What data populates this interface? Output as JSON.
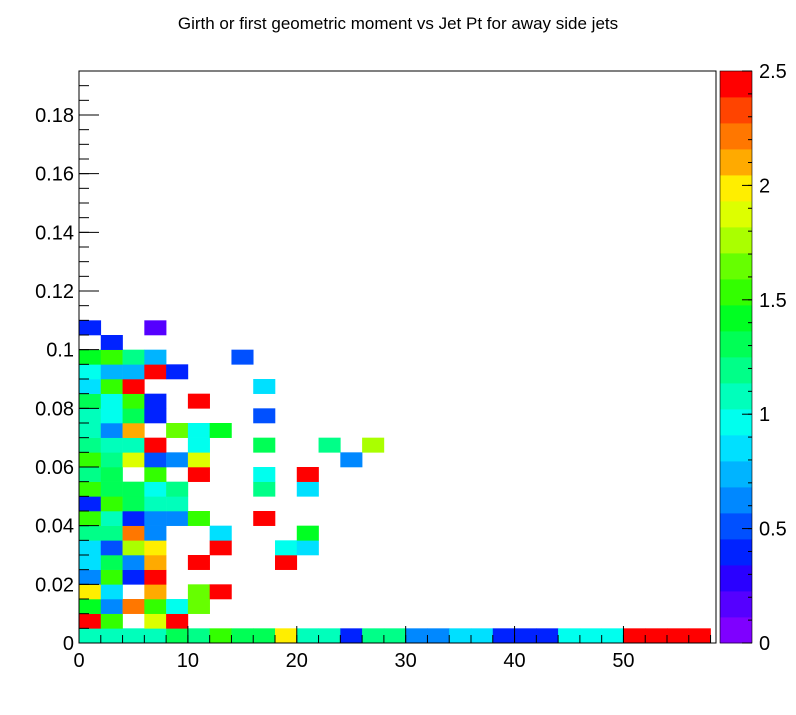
{
  "chart_data": {
    "type": "heatmap",
    "title": "Girth or first geometric moment vs Jet Pt for away side jets",
    "xlabel": "",
    "ylabel": "",
    "xlim": [
      0,
      58.5
    ],
    "ylim": [
      0,
      0.195
    ],
    "x_bin_width": 2,
    "y_bin_width": 0.005,
    "x_ticks": [
      "0",
      "10",
      "20",
      "30",
      "40",
      "50"
    ],
    "x_tick_values": [
      0,
      10,
      20,
      30,
      40,
      50
    ],
    "y_ticks": [
      "0",
      "0.02",
      "0.04",
      "0.06",
      "0.08",
      "0.1",
      "0.12",
      "0.14",
      "0.16",
      "0.18"
    ],
    "y_tick_values": [
      0,
      0.02,
      0.04,
      0.06,
      0.08,
      0.1,
      0.12,
      0.14,
      0.16,
      0.18
    ],
    "colorbar": {
      "min": 0,
      "max": 2.5,
      "levels": 20,
      "ticks": [
        "0",
        "0.5",
        "1",
        "1.5",
        "2",
        "2.5"
      ],
      "tick_values": [
        0,
        0.5,
        1,
        1.5,
        2,
        2.5
      ],
      "colors": [
        "#7f00ff",
        "#5500ff",
        "#2a00ff",
        "#0022ff",
        "#0050ff",
        "#0088ff",
        "#00b4ff",
        "#00e0ff",
        "#00ffee",
        "#00ffbb",
        "#00ff88",
        "#00ff55",
        "#00ff22",
        "#33ff00",
        "#66ff00",
        "#aaff00",
        "#ddff00",
        "#ffee00",
        "#ffaa00",
        "#ff7700",
        "#ff4400",
        "#ff0000"
      ]
    },
    "cells": [
      {
        "x": 0,
        "y": 0,
        "v": 1.05
      },
      {
        "x": 2,
        "y": 0,
        "v": 1.05
      },
      {
        "x": 4,
        "y": 0,
        "v": 1.05
      },
      {
        "x": 6,
        "y": 0,
        "v": 1.05
      },
      {
        "x": 8,
        "y": 0,
        "v": 1.3
      },
      {
        "x": 10,
        "y": 0,
        "v": 1.15
      },
      {
        "x": 12,
        "y": 0,
        "v": 1.55
      },
      {
        "x": 14,
        "y": 0,
        "v": 1.35
      },
      {
        "x": 16,
        "y": 0,
        "v": 1.35
      },
      {
        "x": 18,
        "y": 0,
        "v": 2.05
      },
      {
        "x": 20,
        "y": 0,
        "v": 1.05
      },
      {
        "x": 22,
        "y": 0,
        "v": 1.05
      },
      {
        "x": 24,
        "y": 0,
        "v": 0.3
      },
      {
        "x": 26,
        "y": 0,
        "v": 1.15
      },
      {
        "x": 28,
        "y": 0,
        "v": 1.15
      },
      {
        "x": 30,
        "y": 0,
        "v": 0.55
      },
      {
        "x": 32,
        "y": 0,
        "v": 0.55
      },
      {
        "x": 34,
        "y": 0,
        "v": 0.85
      },
      {
        "x": 36,
        "y": 0,
        "v": 0.85
      },
      {
        "x": 38,
        "y": 0,
        "v": 0.4
      },
      {
        "x": 40,
        "y": 0,
        "v": 0.4
      },
      {
        "x": 42,
        "y": 0,
        "v": 0.4
      },
      {
        "x": 44,
        "y": 0,
        "v": 1.0
      },
      {
        "x": 46,
        "y": 0,
        "v": 1.0
      },
      {
        "x": 48,
        "y": 0,
        "v": 1.0
      },
      {
        "x": 50,
        "y": 0,
        "v": 2.5
      },
      {
        "x": 52,
        "y": 0,
        "v": 2.5
      },
      {
        "x": 54,
        "y": 0,
        "v": 2.5
      },
      {
        "x": 56,
        "y": 0,
        "v": 2.5
      },
      {
        "x": 0,
        "y": 0.005,
        "v": 2.5
      },
      {
        "x": 2,
        "y": 0.005,
        "v": 1.55
      },
      {
        "x": 6,
        "y": 0.005,
        "v": 1.85
      },
      {
        "x": 8,
        "y": 0.005,
        "v": 2.5
      },
      {
        "x": 0,
        "y": 0.01,
        "v": 1.4
      },
      {
        "x": 2,
        "y": 0.01,
        "v": 0.6
      },
      {
        "x": 4,
        "y": 0.01,
        "v": 2.3
      },
      {
        "x": 6,
        "y": 0.01,
        "v": 1.55
      },
      {
        "x": 8,
        "y": 0.01,
        "v": 1.0
      },
      {
        "x": 10,
        "y": 0.01,
        "v": 1.65
      },
      {
        "x": 0,
        "y": 0.015,
        "v": 2.05
      },
      {
        "x": 2,
        "y": 0.015,
        "v": 0.85
      },
      {
        "x": 6,
        "y": 0.015,
        "v": 2.2
      },
      {
        "x": 10,
        "y": 0.015,
        "v": 1.65
      },
      {
        "x": 12,
        "y": 0.015,
        "v": 2.5
      },
      {
        "x": 0,
        "y": 0.02,
        "v": 0.55
      },
      {
        "x": 2,
        "y": 0.02,
        "v": 1.6
      },
      {
        "x": 4,
        "y": 0.02,
        "v": 0.4
      },
      {
        "x": 6,
        "y": 0.02,
        "v": 2.5
      },
      {
        "x": 0,
        "y": 0.025,
        "v": 0.8
      },
      {
        "x": 2,
        "y": 0.025,
        "v": 1.35
      },
      {
        "x": 4,
        "y": 0.025,
        "v": 0.6
      },
      {
        "x": 6,
        "y": 0.025,
        "v": 2.2
      },
      {
        "x": 10,
        "y": 0.025,
        "v": 2.5
      },
      {
        "x": 18,
        "y": 0.025,
        "v": 2.5
      },
      {
        "x": 0,
        "y": 0.03,
        "v": 0.85
      },
      {
        "x": 2,
        "y": 0.03,
        "v": 0.45
      },
      {
        "x": 4,
        "y": 0.03,
        "v": 1.75
      },
      {
        "x": 6,
        "y": 0.03,
        "v": 2.05
      },
      {
        "x": 12,
        "y": 0.03,
        "v": 2.5
      },
      {
        "x": 18,
        "y": 0.03,
        "v": 1.0
      },
      {
        "x": 20,
        "y": 0.03,
        "v": 0.85
      },
      {
        "x": 0,
        "y": 0.035,
        "v": 1.15
      },
      {
        "x": 2,
        "y": 0.035,
        "v": 1.15
      },
      {
        "x": 4,
        "y": 0.035,
        "v": 2.3
      },
      {
        "x": 6,
        "y": 0.035,
        "v": 0.6
      },
      {
        "x": 12,
        "y": 0.035,
        "v": 0.85
      },
      {
        "x": 20,
        "y": 0.035,
        "v": 1.4
      },
      {
        "x": 0,
        "y": 0.04,
        "v": 1.6
      },
      {
        "x": 2,
        "y": 0.04,
        "v": 1.1
      },
      {
        "x": 4,
        "y": 0.04,
        "v": 0.35
      },
      {
        "x": 6,
        "y": 0.04,
        "v": 0.55
      },
      {
        "x": 8,
        "y": 0.04,
        "v": 0.55
      },
      {
        "x": 10,
        "y": 0.04,
        "v": 1.6
      },
      {
        "x": 16,
        "y": 0.04,
        "v": 2.5
      },
      {
        "x": 0,
        "y": 0.045,
        "v": 0.4
      },
      {
        "x": 2,
        "y": 0.045,
        "v": 1.55
      },
      {
        "x": 4,
        "y": 0.045,
        "v": 1.35
      },
      {
        "x": 6,
        "y": 0.045,
        "v": 1.05
      },
      {
        "x": 8,
        "y": 0.045,
        "v": 1.05
      },
      {
        "x": 0,
        "y": 0.05,
        "v": 1.6
      },
      {
        "x": 2,
        "y": 0.05,
        "v": 1.25
      },
      {
        "x": 4,
        "y": 0.05,
        "v": 1.25
      },
      {
        "x": 6,
        "y": 0.05,
        "v": 0.9
      },
      {
        "x": 8,
        "y": 0.05,
        "v": 1.2
      },
      {
        "x": 16,
        "y": 0.05,
        "v": 1.15
      },
      {
        "x": 20,
        "y": 0.05,
        "v": 0.85
      },
      {
        "x": 0,
        "y": 0.055,
        "v": 1.15
      },
      {
        "x": 2,
        "y": 0.055,
        "v": 1.3
      },
      {
        "x": 6,
        "y": 0.055,
        "v": 1.55
      },
      {
        "x": 10,
        "y": 0.055,
        "v": 2.5
      },
      {
        "x": 16,
        "y": 0.055,
        "v": 0.95
      },
      {
        "x": 20,
        "y": 0.055,
        "v": 2.5
      },
      {
        "x": 0,
        "y": 0.06,
        "v": 1.5
      },
      {
        "x": 2,
        "y": 0.06,
        "v": 1.15
      },
      {
        "x": 4,
        "y": 0.06,
        "v": 1.85
      },
      {
        "x": 6,
        "y": 0.06,
        "v": 0.45
      },
      {
        "x": 8,
        "y": 0.06,
        "v": 0.65
      },
      {
        "x": 10,
        "y": 0.06,
        "v": 1.9
      },
      {
        "x": 24,
        "y": 0.06,
        "v": 0.55
      },
      {
        "x": 0,
        "y": 0.065,
        "v": 1.15
      },
      {
        "x": 2,
        "y": 0.065,
        "v": 1.05
      },
      {
        "x": 4,
        "y": 0.065,
        "v": 1.05
      },
      {
        "x": 6,
        "y": 0.065,
        "v": 2.5
      },
      {
        "x": 10,
        "y": 0.065,
        "v": 1.0
      },
      {
        "x": 16,
        "y": 0.065,
        "v": 1.35
      },
      {
        "x": 22,
        "y": 0.065,
        "v": 1.2
      },
      {
        "x": 26,
        "y": 0.065,
        "v": 1.75
      },
      {
        "x": 0,
        "y": 0.07,
        "v": 1.1
      },
      {
        "x": 2,
        "y": 0.07,
        "v": 0.6
      },
      {
        "x": 4,
        "y": 0.07,
        "v": 2.1
      },
      {
        "x": 8,
        "y": 0.07,
        "v": 1.65
      },
      {
        "x": 10,
        "y": 0.07,
        "v": 0.9
      },
      {
        "x": 12,
        "y": 0.07,
        "v": 1.4
      },
      {
        "x": 0,
        "y": 0.075,
        "v": 1.05
      },
      {
        "x": 2,
        "y": 0.075,
        "v": 0.95
      },
      {
        "x": 4,
        "y": 0.075,
        "v": 1.35
      },
      {
        "x": 6,
        "y": 0.075,
        "v": 0.3
      },
      {
        "x": 16,
        "y": 0.075,
        "v": 0.45
      },
      {
        "x": 0,
        "y": 0.08,
        "v": 1.25
      },
      {
        "x": 2,
        "y": 0.08,
        "v": 0.9
      },
      {
        "x": 4,
        "y": 0.08,
        "v": 1.6
      },
      {
        "x": 6,
        "y": 0.08,
        "v": 0.4
      },
      {
        "x": 10,
        "y": 0.08,
        "v": 2.5
      },
      {
        "x": 0,
        "y": 0.085,
        "v": 0.85
      },
      {
        "x": 2,
        "y": 0.085,
        "v": 1.55
      },
      {
        "x": 4,
        "y": 0.085,
        "v": 2.5
      },
      {
        "x": 16,
        "y": 0.085,
        "v": 0.85
      },
      {
        "x": 0,
        "y": 0.09,
        "v": 0.95
      },
      {
        "x": 2,
        "y": 0.09,
        "v": 0.7
      },
      {
        "x": 4,
        "y": 0.09,
        "v": 0.7
      },
      {
        "x": 6,
        "y": 0.09,
        "v": 2.5
      },
      {
        "x": 8,
        "y": 0.09,
        "v": 0.35
      },
      {
        "x": 0,
        "y": 0.095,
        "v": 1.4
      },
      {
        "x": 2,
        "y": 0.095,
        "v": 1.55
      },
      {
        "x": 4,
        "y": 0.095,
        "v": 1.15
      },
      {
        "x": 6,
        "y": 0.095,
        "v": 0.7
      },
      {
        "x": 14,
        "y": 0.095,
        "v": 0.45
      },
      {
        "x": 2,
        "y": 0.1,
        "v": 0.35
      },
      {
        "x": 0,
        "y": 0.105,
        "v": 0.4
      },
      {
        "x": 6,
        "y": 0.105,
        "v": 0.15
      }
    ]
  }
}
